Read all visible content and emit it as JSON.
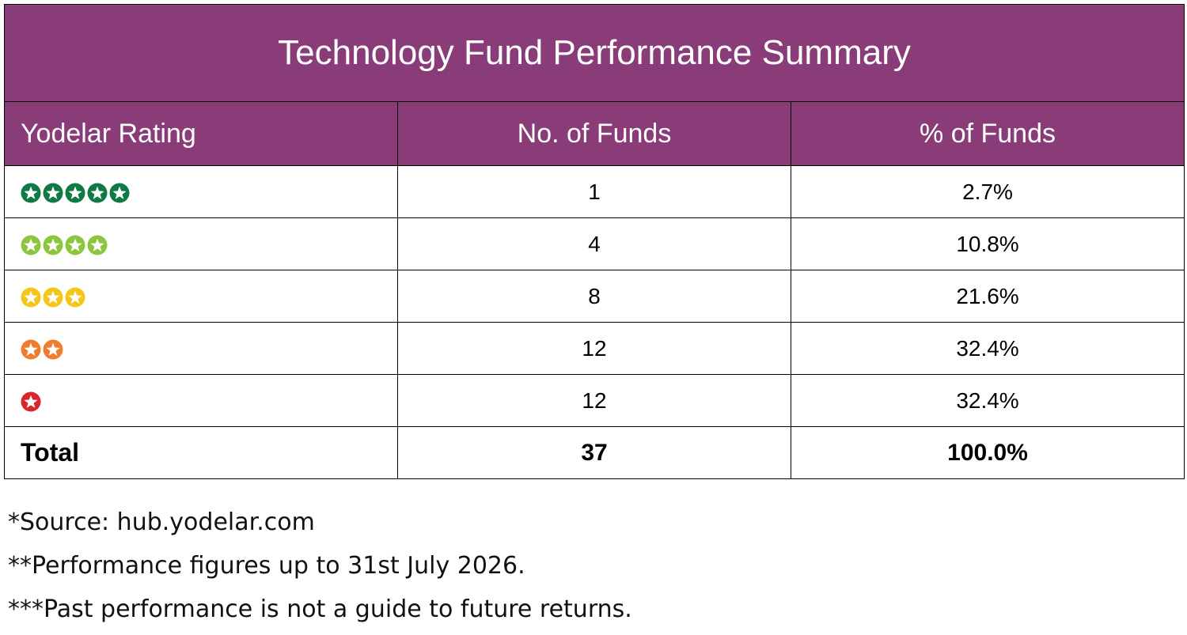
{
  "table": {
    "title": "Technology Fund Performance Summary",
    "headers": [
      "Yodelar Rating",
      "No. of Funds",
      "% of Funds"
    ],
    "rows": [
      {
        "stars": 5,
        "color": "#0f7a45",
        "count": "1",
        "percent": "2.7%"
      },
      {
        "stars": 4,
        "color": "#8cc63f",
        "count": "4",
        "percent": "10.8%"
      },
      {
        "stars": 3,
        "color": "#f5c518",
        "count": "8",
        "percent": "21.6%"
      },
      {
        "stars": 2,
        "color": "#f07d2e",
        "count": "12",
        "percent": "32.4%"
      },
      {
        "stars": 1,
        "color": "#d8262a",
        "count": "12",
        "percent": "32.4%"
      }
    ],
    "total": {
      "label": "Total",
      "count": "37",
      "percent": "100.0%"
    }
  },
  "colors": {
    "header_bg": "#8a3c78",
    "header_text": "#ffffff"
  },
  "notes": [
    "*Source: hub.yodelar.com",
    "**Performance figures up to 31st July 2026.",
    "***Past performance is not a guide to future returns."
  ]
}
